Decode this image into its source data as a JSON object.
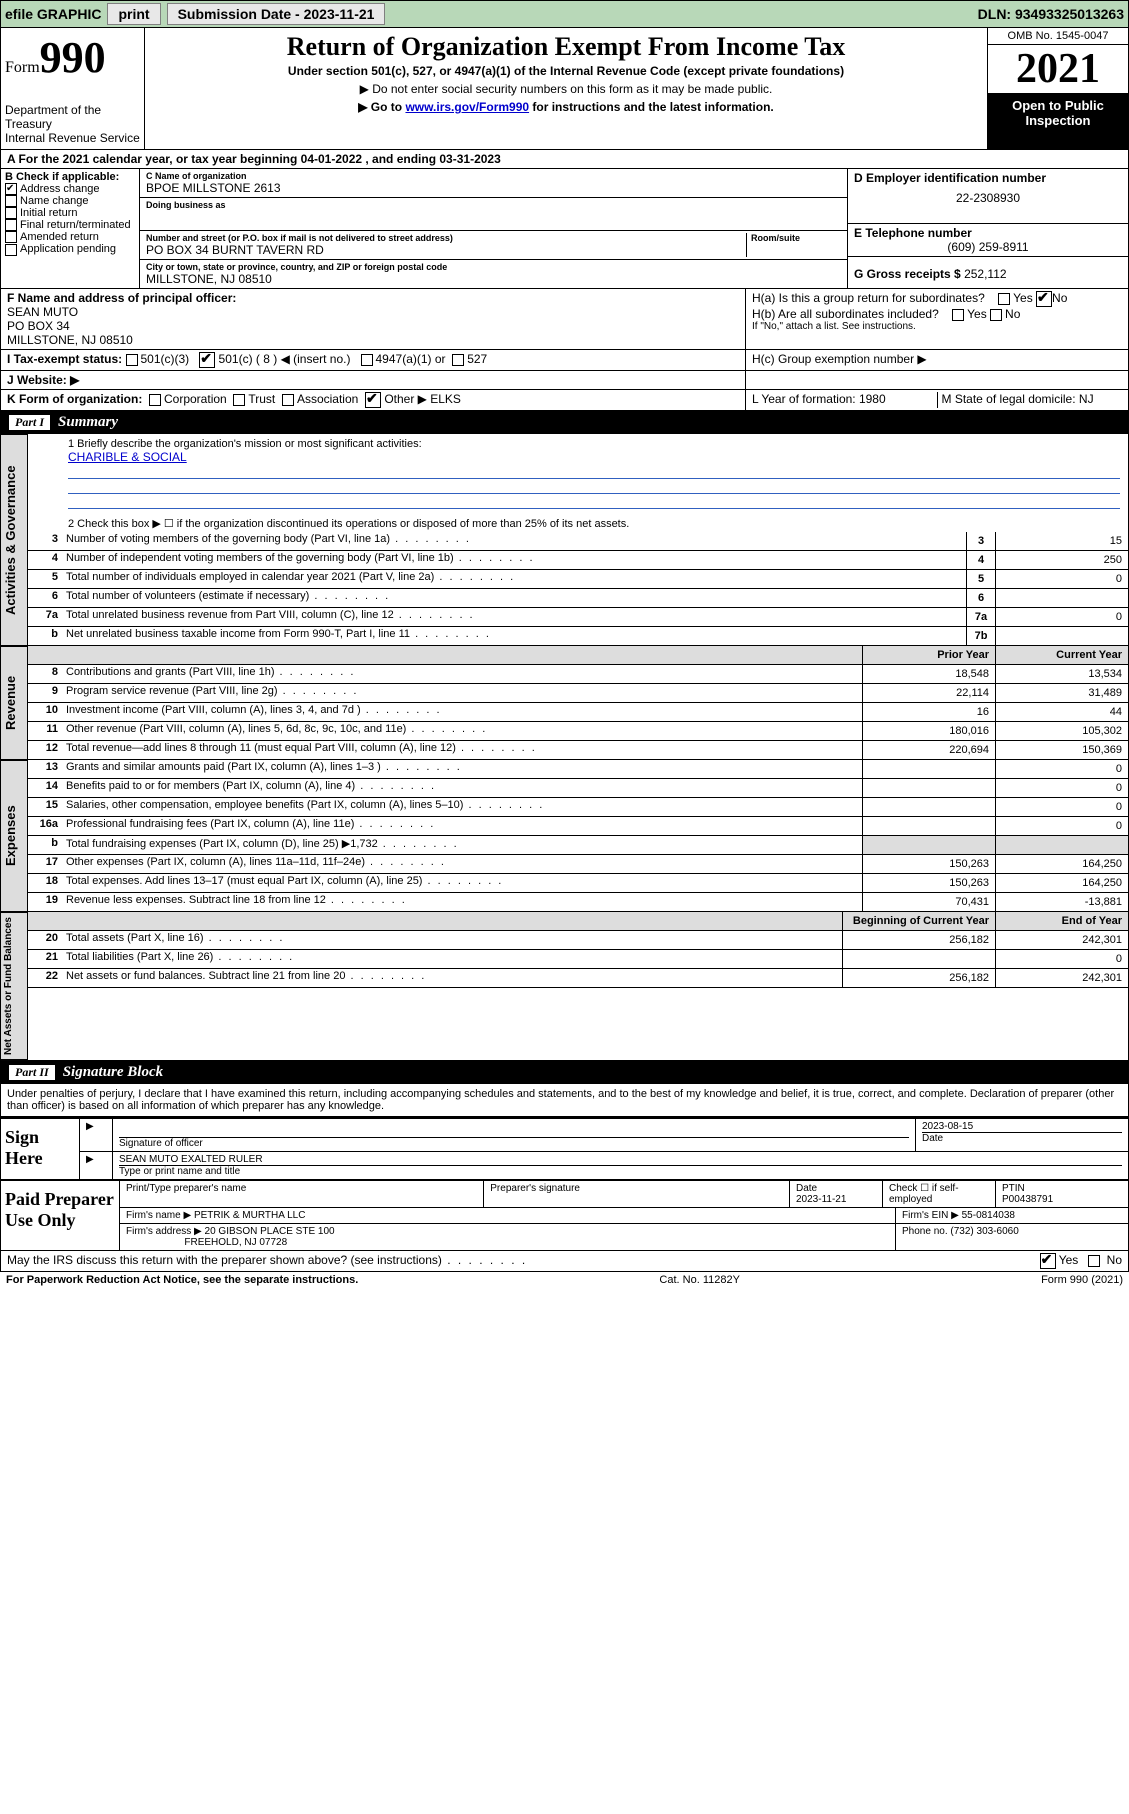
{
  "topbar": {
    "efile": "efile GRAPHIC",
    "print": "print",
    "submission": "Submission Date - 2023-11-21",
    "dln": "DLN: 93493325013263"
  },
  "header": {
    "form_word": "Form",
    "form_num": "990",
    "dept": "Department of the Treasury",
    "irs": "Internal Revenue Service",
    "title": "Return of Organization Exempt From Income Tax",
    "subtitle": "Under section 501(c), 527, or 4947(a)(1) of the Internal Revenue Code (except private foundations)",
    "note1": "▶ Do not enter social security numbers on this form as it may be made public.",
    "note2_pre": "▶ Go to ",
    "note2_link": "www.irs.gov/Form990",
    "note2_post": " for instructions and the latest information.",
    "omb": "OMB No. 1545-0047",
    "year": "2021",
    "inspect": "Open to Public Inspection"
  },
  "rowA": "A For the 2021 calendar year, or tax year beginning 04-01-2022   , and ending 03-31-2023",
  "colB": {
    "header": "B Check if applicable:",
    "items": [
      "Address change",
      "Name change",
      "Initial return",
      "Final return/terminated",
      "Amended return",
      "Application pending"
    ],
    "checked_index": 0
  },
  "colC": {
    "name_label": "C Name of organization",
    "name": "BPOE MILLSTONE 2613",
    "dba_label": "Doing business as",
    "street_label": "Number and street (or P.O. box if mail is not delivered to street address)",
    "room_label": "Room/suite",
    "street": "PO BOX 34 BURNT TAVERN RD",
    "city_label": "City or town, state or province, country, and ZIP or foreign postal code",
    "city": "MILLSTONE, NJ  08510"
  },
  "colD": {
    "ein_label": "D Employer identification number",
    "ein": "22-2308930",
    "phone_label": "E Telephone number",
    "phone": "(609) 259-8911",
    "gross_label": "G Gross receipts $ ",
    "gross": "252,112"
  },
  "rowF": {
    "label": "F  Name and address of principal officer:",
    "name": "SEAN MUTO",
    "addr1": "PO BOX 34",
    "addr2": "MILLSTONE, NJ  08510"
  },
  "rowH": {
    "ha": "H(a)  Is this a group return for subordinates?",
    "hb": "H(b)  Are all subordinates included?",
    "hb_note": "If \"No,\" attach a list. See instructions.",
    "hc": "H(c)  Group exemption number ▶"
  },
  "rowI": {
    "label": "I   Tax-exempt status:",
    "opts": [
      "501(c)(3)",
      "501(c) ( 8 ) ◀ (insert no.)",
      "4947(a)(1) or",
      "527"
    ],
    "checked_index": 1
  },
  "rowJ": {
    "label": "J   Website: ▶"
  },
  "rowK": {
    "text": "K Form of organization:",
    "opts": [
      "Corporation",
      "Trust",
      "Association",
      "Other ▶"
    ],
    "other_val": "ELKS",
    "l": "L Year of formation: 1980",
    "m": "M State of legal domicile: NJ"
  },
  "partI": {
    "label": "Part I",
    "title": "Summary"
  },
  "mission": {
    "q1": "1   Briefly describe the organization's mission or most significant activities:",
    "text": "CHARIBLE & SOCIAL",
    "q2": "2   Check this box ▶ ☐  if the organization discontinued its operations or disposed of more than 25% of its net assets."
  },
  "lines_governance": [
    {
      "n": "3",
      "t": "Number of voting members of the governing body (Part VI, line 1a)",
      "k": "3",
      "v": "15"
    },
    {
      "n": "4",
      "t": "Number of independent voting members of the governing body (Part VI, line 1b)",
      "k": "4",
      "v": "250"
    },
    {
      "n": "5",
      "t": "Total number of individuals employed in calendar year 2021 (Part V, line 2a)",
      "k": "5",
      "v": "0"
    },
    {
      "n": "6",
      "t": "Total number of volunteers (estimate if necessary)",
      "k": "6",
      "v": ""
    },
    {
      "n": "7a",
      "t": "Total unrelated business revenue from Part VIII, column (C), line 12",
      "k": "7a",
      "v": "0"
    },
    {
      "n": "b",
      "t": "Net unrelated business taxable income from Form 990-T, Part I, line 11",
      "k": "7b",
      "v": ""
    }
  ],
  "two_col_header": {
    "prior": "Prior Year",
    "current": "Current Year"
  },
  "lines_revenue": [
    {
      "n": "8",
      "t": "Contributions and grants (Part VIII, line 1h)",
      "p": "18,548",
      "c": "13,534"
    },
    {
      "n": "9",
      "t": "Program service revenue (Part VIII, line 2g)",
      "p": "22,114",
      "c": "31,489"
    },
    {
      "n": "10",
      "t": "Investment income (Part VIII, column (A), lines 3, 4, and 7d )",
      "p": "16",
      "c": "44"
    },
    {
      "n": "11",
      "t": "Other revenue (Part VIII, column (A), lines 5, 6d, 8c, 9c, 10c, and 11e)",
      "p": "180,016",
      "c": "105,302"
    },
    {
      "n": "12",
      "t": "Total revenue—add lines 8 through 11 (must equal Part VIII, column (A), line 12)",
      "p": "220,694",
      "c": "150,369"
    }
  ],
  "lines_expenses": [
    {
      "n": "13",
      "t": "Grants and similar amounts paid (Part IX, column (A), lines 1–3 )",
      "p": "",
      "c": "0"
    },
    {
      "n": "14",
      "t": "Benefits paid to or for members (Part IX, column (A), line 4)",
      "p": "",
      "c": "0"
    },
    {
      "n": "15",
      "t": "Salaries, other compensation, employee benefits (Part IX, column (A), lines 5–10)",
      "p": "",
      "c": "0"
    },
    {
      "n": "16a",
      "t": "Professional fundraising fees (Part IX, column (A), line 11e)",
      "p": "",
      "c": "0"
    },
    {
      "n": "b",
      "t": "Total fundraising expenses (Part IX, column (D), line 25) ▶1,732",
      "p": "shade",
      "c": "shade"
    },
    {
      "n": "17",
      "t": "Other expenses (Part IX, column (A), lines 11a–11d, 11f–24e)",
      "p": "150,263",
      "c": "164,250"
    },
    {
      "n": "18",
      "t": "Total expenses. Add lines 13–17 (must equal Part IX, column (A), line 25)",
      "p": "150,263",
      "c": "164,250"
    },
    {
      "n": "19",
      "t": "Revenue less expenses. Subtract line 18 from line 12",
      "p": "70,431",
      "c": "-13,881"
    }
  ],
  "balance_header": {
    "begin": "Beginning of Current Year",
    "end": "End of Year"
  },
  "lines_balance": [
    {
      "n": "20",
      "t": "Total assets (Part X, line 16)",
      "p": "256,182",
      "c": "242,301"
    },
    {
      "n": "21",
      "t": "Total liabilities (Part X, line 26)",
      "p": "",
      "c": "0"
    },
    {
      "n": "22",
      "t": "Net assets or fund balances. Subtract line 21 from line 20",
      "p": "256,182",
      "c": "242,301"
    }
  ],
  "vtabs": {
    "gov": "Activities & Governance",
    "rev": "Revenue",
    "exp": "Expenses",
    "bal": "Net Assets or Fund Balances"
  },
  "partII": {
    "label": "Part II",
    "title": "Signature Block"
  },
  "sig_decl": "Under penalties of perjury, I declare that I have examined this return, including accompanying schedules and statements, and to the best of my knowledge and belief, it is true, correct, and complete. Declaration of preparer (other than officer) is based on all information of which preparer has any knowledge.",
  "sign_here": "Sign Here",
  "sig": {
    "officer_label": "Signature of officer",
    "date_label": "Date",
    "date": "2023-08-15",
    "name": "SEAN MUTO  EXALTED RULER",
    "name_label": "Type or print name and title"
  },
  "paid": {
    "label": "Paid Preparer Use Only",
    "h1": "Print/Type preparer's name",
    "h2": "Preparer's signature",
    "h3": "Date",
    "h3v": "2023-11-21",
    "h4": "Check ☐ if self-employed",
    "h5": "PTIN",
    "h5v": "P00438791",
    "firm_name_l": "Firm's name    ▶",
    "firm_name": "PETRIK & MURTHA LLC",
    "firm_ein_l": "Firm's EIN ▶",
    "firm_ein": "55-0814038",
    "firm_addr_l": "Firm's address ▶",
    "firm_addr1": "20 GIBSON PLACE STE 100",
    "firm_addr2": "FREEHOLD, NJ  07728",
    "firm_phone_l": "Phone no.",
    "firm_phone": "(732) 303-6060"
  },
  "discuss": "May the IRS discuss this return with the preparer shown above? (see instructions)",
  "footer": {
    "left": "For Paperwork Reduction Act Notice, see the separate instructions.",
    "mid": "Cat. No. 11282Y",
    "right": "Form 990 (2021)"
  }
}
